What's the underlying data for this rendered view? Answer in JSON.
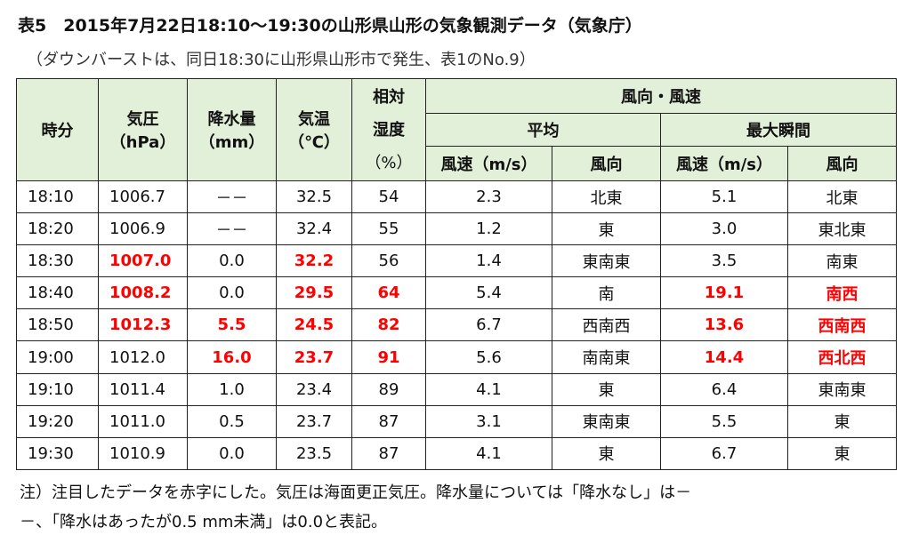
{
  "title": "表5　2015年7月22日18:10～19:30の山形県山形の気象観測データ（気象庁）",
  "subtitle": "（ダウンバーストは、同日18:30に山形県山形市で発生、表1のNo.9）",
  "headers": {
    "time": "時分",
    "pressure": "気圧",
    "pressure_unit": "（hPa）",
    "precip": "降水量",
    "precip_unit": "（mm）",
    "temp": "気温",
    "temp_unit": "（℃）",
    "humidity1": "相対",
    "humidity2": "湿度",
    "humidity_unit": "（%）",
    "wind": "風向・風速",
    "avg": "平均",
    "max": "最大瞬間",
    "avg_speed": "風速（m/s）",
    "avg_dir": "風向",
    "max_speed": "風速（m/s）",
    "max_dir": "風向"
  },
  "accent_red": "#ff0000",
  "rows": [
    [
      {
        "v": "18:10"
      },
      {
        "v": "1006.7"
      },
      {
        "v": "－－"
      },
      {
        "v": "32.5"
      },
      {
        "v": "54"
      },
      {
        "v": "2.3"
      },
      {
        "v": "北東"
      },
      {
        "v": "5.1"
      },
      {
        "v": "北東"
      }
    ],
    [
      {
        "v": "18:20"
      },
      {
        "v": "1006.9"
      },
      {
        "v": "－－"
      },
      {
        "v": "32.4"
      },
      {
        "v": "55"
      },
      {
        "v": "1.2"
      },
      {
        "v": "東"
      },
      {
        "v": "3.0"
      },
      {
        "v": "東北東"
      }
    ],
    [
      {
        "v": "18:30"
      },
      {
        "v": "1007.0",
        "red": true
      },
      {
        "v": "0.0"
      },
      {
        "v": "32.2",
        "red": true
      },
      {
        "v": "56"
      },
      {
        "v": "1.4"
      },
      {
        "v": "東南東"
      },
      {
        "v": "3.5"
      },
      {
        "v": "南東"
      }
    ],
    [
      {
        "v": "18:40"
      },
      {
        "v": "1008.2",
        "red": true
      },
      {
        "v": "0.0"
      },
      {
        "v": "29.5",
        "red": true
      },
      {
        "v": "64",
        "red": true
      },
      {
        "v": "5.4"
      },
      {
        "v": "南"
      },
      {
        "v": "19.1",
        "red": true
      },
      {
        "v": "南西",
        "red": true
      }
    ],
    [
      {
        "v": "18:50"
      },
      {
        "v": "1012.3",
        "red": true
      },
      {
        "v": "5.5",
        "red": true
      },
      {
        "v": "24.5",
        "red": true
      },
      {
        "v": "82",
        "red": true
      },
      {
        "v": "6.7"
      },
      {
        "v": "西南西"
      },
      {
        "v": "13.6",
        "red": true
      },
      {
        "v": "西南西",
        "red": true
      }
    ],
    [
      {
        "v": "19:00"
      },
      {
        "v": "1012.0"
      },
      {
        "v": "16.0",
        "red": true
      },
      {
        "v": "23.7",
        "red": true
      },
      {
        "v": "91",
        "red": true
      },
      {
        "v": "5.6"
      },
      {
        "v": "南南東"
      },
      {
        "v": "14.4",
        "red": true
      },
      {
        "v": "西北西",
        "red": true
      }
    ],
    [
      {
        "v": "19:10"
      },
      {
        "v": "1011.4"
      },
      {
        "v": "1.0"
      },
      {
        "v": "23.4"
      },
      {
        "v": "89"
      },
      {
        "v": "4.1"
      },
      {
        "v": "東"
      },
      {
        "v": "6.4"
      },
      {
        "v": "東南東"
      }
    ],
    [
      {
        "v": "19:20"
      },
      {
        "v": "1011.0"
      },
      {
        "v": "0.5"
      },
      {
        "v": "23.7"
      },
      {
        "v": "87"
      },
      {
        "v": "3.1"
      },
      {
        "v": "東南東"
      },
      {
        "v": "5.5"
      },
      {
        "v": "東"
      }
    ],
    [
      {
        "v": "19:30"
      },
      {
        "v": "1010.9"
      },
      {
        "v": "0.0"
      },
      {
        "v": "23.5"
      },
      {
        "v": "87"
      },
      {
        "v": "4.1"
      },
      {
        "v": "東"
      },
      {
        "v": "6.7"
      },
      {
        "v": "東"
      }
    ]
  ],
  "note1": "注）注目したデータを赤字にした。気圧は海面更正気圧。降水量については「降水なし」は－",
  "note2": "－、「降水はあったが0.5 mm未満」は0.0と表記。"
}
